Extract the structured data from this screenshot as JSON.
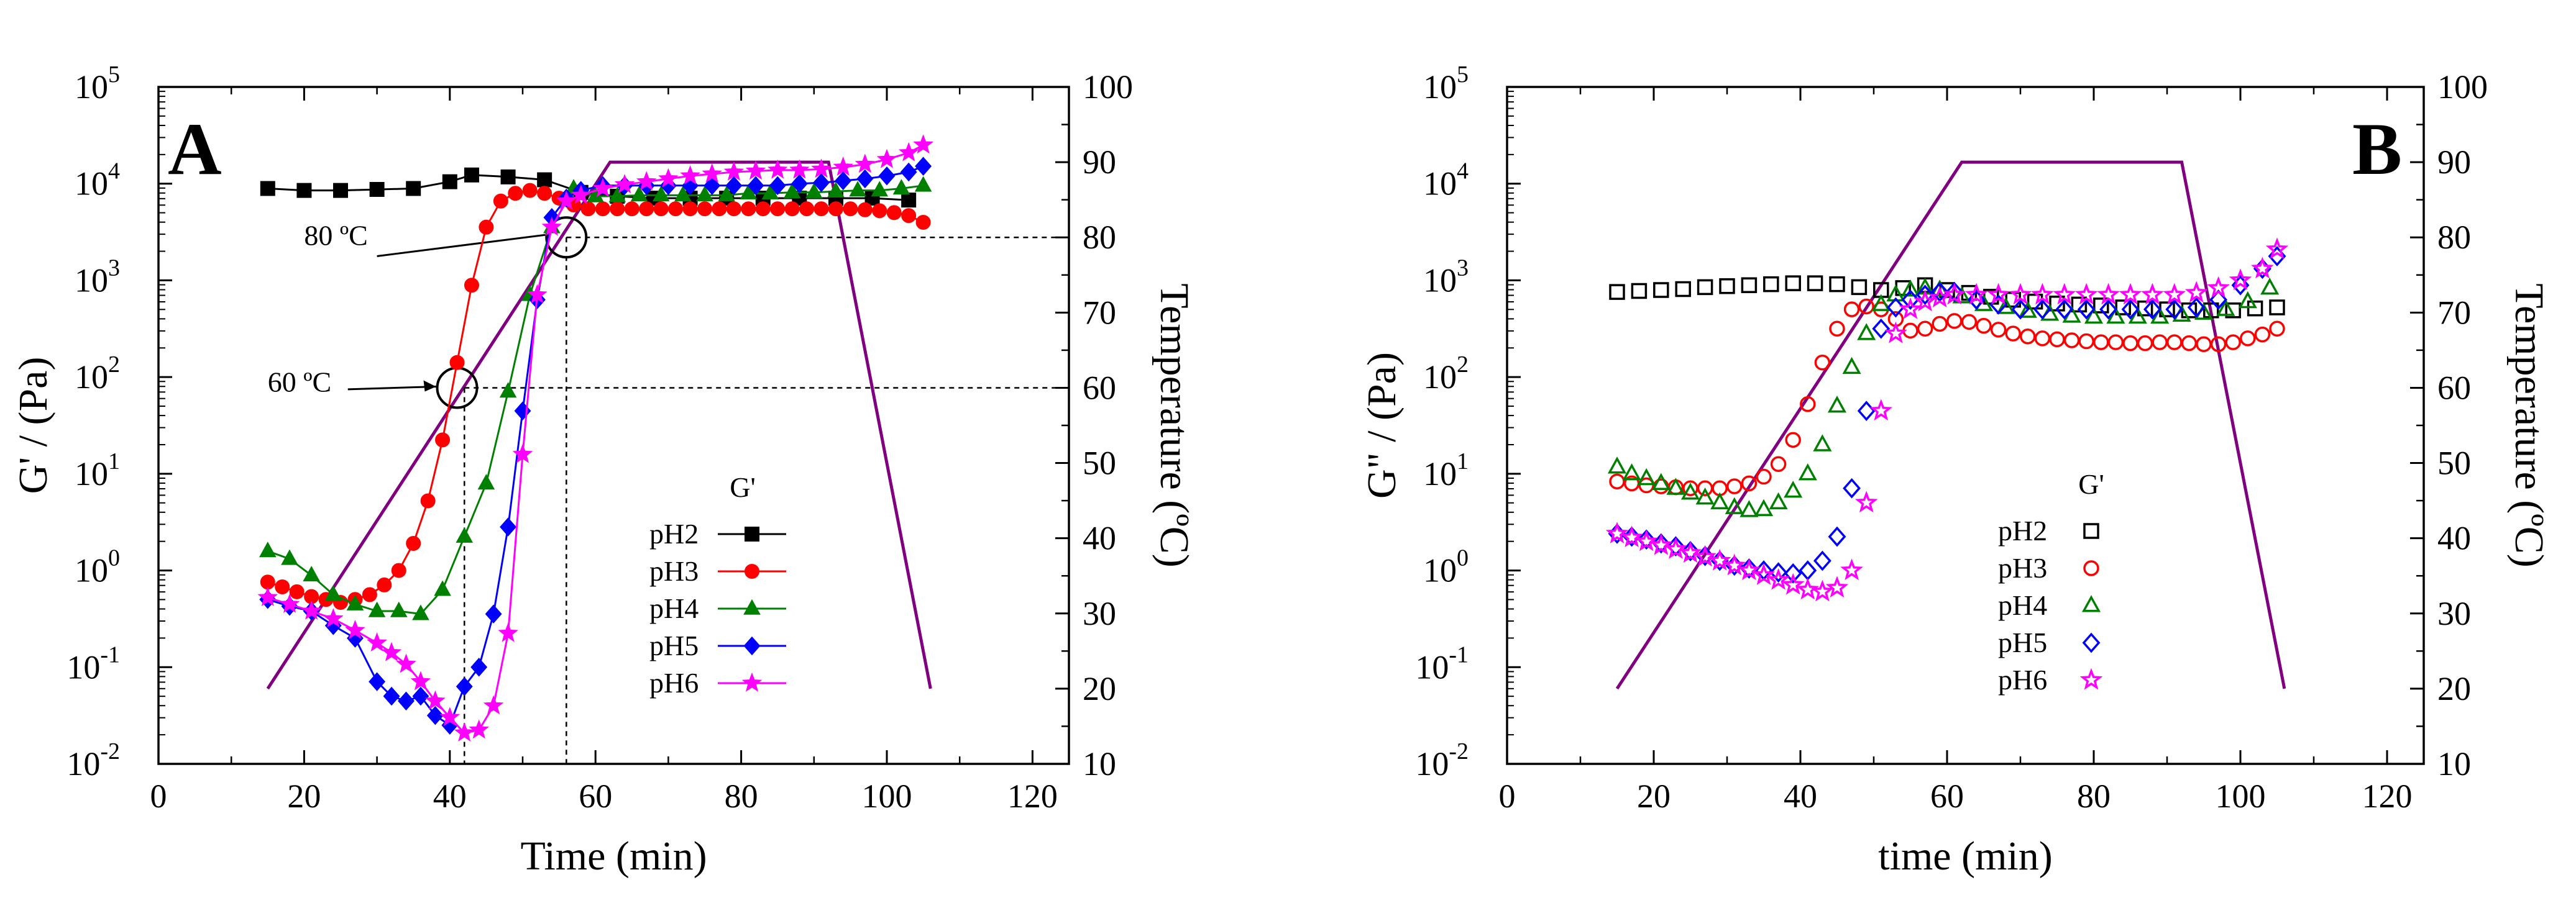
{
  "chart_data": [
    {
      "id": "A",
      "type": "scatter",
      "panel_label": "A",
      "xlabel": "Time (min)",
      "ylabel": "G' / (Pa)",
      "y2label": "Temperature (ºC)",
      "xlim": [
        0,
        125
      ],
      "ylim_log10": [
        -2,
        5
      ],
      "y2lim": [
        10,
        100
      ],
      "x_ticks": [
        "0",
        "20",
        "40",
        "60",
        "80",
        "100",
        "120"
      ],
      "x_tick_values": [
        0,
        20,
        40,
        60,
        80,
        100,
        120
      ],
      "y_ticks": [
        "10",
        "10",
        "10",
        "10",
        "10",
        "10",
        "10",
        "10"
      ],
      "y_tick_exponents": [
        "-2",
        "-1",
        "0",
        "1",
        "2",
        "3",
        "4",
        "5"
      ],
      "y_tick_values": [
        -2,
        -1,
        0,
        1,
        2,
        3,
        4,
        5
      ],
      "y2_ticks": [
        "10",
        "20",
        "30",
        "40",
        "50",
        "60",
        "70",
        "80",
        "90",
        "100"
      ],
      "y2_tick_values": [
        10,
        20,
        30,
        40,
        50,
        60,
        70,
        80,
        90,
        100
      ],
      "legend_title": "G'",
      "legend_placement": "center-right",
      "temperature_profile": {
        "x": [
          15,
          62,
          92,
          106
        ],
        "y": [
          20,
          90,
          90,
          20
        ]
      },
      "annotations": [
        {
          "text": "80 ºC",
          "target_x": 56,
          "target_temp": 80
        },
        {
          "text": "60 ºC",
          "target_x": 42,
          "target_temp": 60
        }
      ],
      "series": [
        {
          "name": "pH2",
          "color": "#000000",
          "marker": "square",
          "filled": true,
          "x": [
            15,
            20,
            25,
            30,
            35,
            40,
            43,
            48,
            53,
            58,
            63,
            68,
            73,
            78,
            83,
            88,
            93,
            98,
            103
          ],
          "y_log10": [
            3.95,
            3.93,
            3.93,
            3.94,
            3.95,
            4.02,
            4.09,
            4.07,
            4.04,
            3.91,
            3.87,
            3.85,
            3.85,
            3.85,
            3.85,
            3.85,
            3.85,
            3.85,
            3.83
          ]
        },
        {
          "name": "pH3",
          "color": "#ff0000",
          "marker": "circle",
          "filled": true,
          "x": [
            15,
            17,
            19,
            21,
            23,
            25,
            27,
            29,
            31,
            33,
            35,
            37,
            39,
            41,
            43,
            45,
            47,
            49,
            51,
            53,
            55,
            57,
            59,
            61,
            63,
            65,
            67,
            69,
            71,
            73,
            75,
            77,
            79,
            81,
            83,
            85,
            87,
            89,
            91,
            93,
            95,
            97,
            99,
            101,
            103,
            105
          ],
          "y_log10": [
            -0.12,
            -0.17,
            -0.22,
            -0.27,
            -0.3,
            -0.33,
            -0.3,
            -0.25,
            -0.15,
            0.0,
            0.28,
            0.72,
            1.35,
            2.15,
            2.95,
            3.55,
            3.82,
            3.9,
            3.93,
            3.9,
            3.85,
            3.78,
            3.74,
            3.74,
            3.74,
            3.74,
            3.74,
            3.74,
            3.74,
            3.74,
            3.74,
            3.74,
            3.74,
            3.74,
            3.74,
            3.74,
            3.74,
            3.74,
            3.74,
            3.74,
            3.74,
            3.73,
            3.72,
            3.7,
            3.67,
            3.6
          ]
        },
        {
          "name": "pH4",
          "color": "#008000",
          "marker": "triangle",
          "filled": true,
          "x": [
            15,
            18,
            21,
            24,
            27,
            30,
            33,
            36,
            39,
            42,
            45,
            48,
            51,
            54,
            57,
            60,
            63,
            66,
            69,
            72,
            75,
            78,
            81,
            84,
            87,
            90,
            93,
            96,
            99,
            102,
            105
          ],
          "y_log10": [
            0.2,
            0.12,
            -0.05,
            -0.25,
            -0.35,
            -0.42,
            -0.42,
            -0.45,
            -0.2,
            0.35,
            0.9,
            1.85,
            2.85,
            3.55,
            3.95,
            3.87,
            3.87,
            3.88,
            3.88,
            3.88,
            3.88,
            3.88,
            3.9,
            3.9,
            3.91,
            3.91,
            3.92,
            3.93,
            3.93,
            3.95,
            3.98
          ]
        },
        {
          "name": "pH5",
          "color": "#0000ff",
          "marker": "diamond",
          "filled": true,
          "x": [
            15,
            18,
            21,
            24,
            27,
            30,
            32,
            34,
            36,
            38,
            40,
            42,
            44,
            46,
            48,
            50,
            52,
            54,
            56,
            58,
            61,
            64,
            67,
            70,
            73,
            76,
            79,
            82,
            85,
            88,
            91,
            94,
            97,
            100,
            103,
            105
          ],
          "y_log10": [
            -0.3,
            -0.37,
            -0.42,
            -0.57,
            -0.7,
            -1.15,
            -1.3,
            -1.35,
            -1.3,
            -1.5,
            -1.6,
            -1.2,
            -1.0,
            -0.45,
            0.45,
            1.65,
            2.8,
            3.65,
            3.85,
            3.93,
            3.98,
            3.98,
            3.98,
            3.98,
            3.98,
            3.98,
            3.98,
            3.98,
            3.98,
            4.0,
            4.01,
            4.03,
            4.05,
            4.08,
            4.12,
            4.18
          ]
        },
        {
          "name": "pH6",
          "color": "#ff00ff",
          "marker": "star",
          "filled": true,
          "x": [
            15,
            18,
            21,
            24,
            27,
            30,
            32,
            34,
            36,
            38,
            40,
            42,
            44,
            46,
            48,
            50,
            52,
            54,
            56,
            58,
            61,
            64,
            67,
            70,
            73,
            76,
            79,
            82,
            85,
            88,
            91,
            94,
            97,
            100,
            103,
            105
          ],
          "y_log10": [
            -0.28,
            -0.35,
            -0.42,
            -0.5,
            -0.62,
            -0.75,
            -0.85,
            -0.97,
            -1.15,
            -1.35,
            -1.52,
            -1.68,
            -1.65,
            -1.4,
            -0.65,
            1.2,
            2.85,
            3.55,
            3.82,
            3.88,
            3.95,
            3.99,
            4.02,
            4.05,
            4.08,
            4.1,
            4.12,
            4.13,
            4.14,
            4.14,
            4.15,
            4.17,
            4.2,
            4.25,
            4.32,
            4.4
          ]
        }
      ]
    },
    {
      "id": "B",
      "type": "scatter",
      "panel_label": "B",
      "xlabel": "time (min)",
      "ylabel": "G\" / (Pa)",
      "y2label": "Temperature (ºC)",
      "xlim": [
        0,
        125
      ],
      "ylim_log10": [
        -2,
        5
      ],
      "y2lim": [
        10,
        100
      ],
      "x_ticks": [
        "0",
        "20",
        "40",
        "60",
        "80",
        "100",
        "120"
      ],
      "x_tick_values": [
        0,
        20,
        40,
        60,
        80,
        100,
        120
      ],
      "y_ticks": [
        "10",
        "10",
        "10",
        "10",
        "10",
        "10",
        "10",
        "10"
      ],
      "y_tick_exponents": [
        "-2",
        "-1",
        "0",
        "1",
        "2",
        "3",
        "4",
        "5"
      ],
      "y_tick_values": [
        -2,
        -1,
        0,
        1,
        2,
        3,
        4,
        5
      ],
      "y2_ticks": [
        "10",
        "20",
        "30",
        "40",
        "50",
        "60",
        "70",
        "80",
        "90",
        "100"
      ],
      "y2_tick_values": [
        10,
        20,
        30,
        40,
        50,
        60,
        70,
        80,
        90,
        100
      ],
      "legend_title": "G'",
      "legend_placement": "center-right",
      "temperature_profile": {
        "x": [
          15,
          62,
          92,
          106
        ],
        "y": [
          20,
          90,
          90,
          20
        ]
      },
      "series": [
        {
          "name": "pH2",
          "color": "#000000",
          "marker": "square",
          "filled": false,
          "x": [
            15,
            18,
            21,
            24,
            27,
            30,
            33,
            36,
            39,
            42,
            45,
            48,
            51,
            54,
            57,
            60,
            63,
            66,
            69,
            72,
            75,
            78,
            81,
            84,
            87,
            90,
            93,
            96,
            99,
            102,
            105
          ],
          "y_log10": [
            2.88,
            2.89,
            2.9,
            2.91,
            2.93,
            2.94,
            2.95,
            2.96,
            2.97,
            2.97,
            2.96,
            2.93,
            2.9,
            2.92,
            2.95,
            2.9,
            2.87,
            2.83,
            2.8,
            2.78,
            2.76,
            2.75,
            2.74,
            2.72,
            2.71,
            2.7,
            2.69,
            2.69,
            2.69,
            2.71,
            2.72
          ]
        },
        {
          "name": "pH3",
          "color": "#ff0000",
          "marker": "circle",
          "filled": false,
          "x": [
            15,
            17,
            19,
            21,
            23,
            25,
            27,
            29,
            31,
            33,
            35,
            37,
            39,
            41,
            43,
            45,
            47,
            49,
            51,
            53,
            55,
            57,
            59,
            61,
            63,
            65,
            67,
            69,
            71,
            73,
            75,
            77,
            79,
            81,
            83,
            85,
            87,
            89,
            91,
            93,
            95,
            97,
            99,
            101,
            103,
            105
          ],
          "y_log10": [
            0.92,
            0.9,
            0.88,
            0.87,
            0.86,
            0.85,
            0.85,
            0.85,
            0.87,
            0.9,
            0.97,
            1.1,
            1.35,
            1.72,
            2.15,
            2.5,
            2.7,
            2.73,
            2.7,
            2.6,
            2.48,
            2.5,
            2.55,
            2.58,
            2.57,
            2.53,
            2.49,
            2.45,
            2.42,
            2.4,
            2.39,
            2.38,
            2.37,
            2.36,
            2.36,
            2.35,
            2.35,
            2.36,
            2.36,
            2.35,
            2.34,
            2.34,
            2.36,
            2.4,
            2.44,
            2.5
          ]
        },
        {
          "name": "pH4",
          "color": "#008000",
          "marker": "triangle",
          "filled": false,
          "x": [
            15,
            17,
            19,
            21,
            23,
            25,
            27,
            29,
            31,
            33,
            35,
            37,
            39,
            41,
            43,
            45,
            47,
            49,
            51,
            53,
            55,
            57,
            59,
            62,
            65,
            68,
            71,
            74,
            77,
            80,
            83,
            86,
            89,
            92,
            95,
            98,
            101,
            104
          ],
          "y_log10": [
            1.07,
            1.0,
            0.95,
            0.9,
            0.85,
            0.8,
            0.75,
            0.7,
            0.65,
            0.62,
            0.63,
            0.7,
            0.82,
            1.0,
            1.3,
            1.7,
            2.1,
            2.45,
            2.75,
            2.85,
            2.9,
            2.92,
            2.9,
            2.83,
            2.75,
            2.72,
            2.68,
            2.65,
            2.63,
            2.62,
            2.62,
            2.62,
            2.62,
            2.64,
            2.66,
            2.7,
            2.78,
            2.92
          ]
        },
        {
          "name": "pH5",
          "color": "#0000ff",
          "marker": "diamond",
          "filled": false,
          "x": [
            15,
            17,
            19,
            21,
            23,
            25,
            27,
            29,
            31,
            33,
            35,
            37,
            39,
            41,
            43,
            45,
            47,
            49,
            51,
            53,
            55,
            57,
            59,
            61,
            64,
            67,
            70,
            73,
            76,
            79,
            82,
            85,
            88,
            91,
            94,
            97,
            100,
            103,
            105
          ],
          "y_log10": [
            0.38,
            0.35,
            0.32,
            0.28,
            0.25,
            0.2,
            0.15,
            0.1,
            0.05,
            0.02,
            0.0,
            -0.02,
            -0.03,
            0.0,
            0.1,
            0.35,
            0.85,
            1.65,
            2.5,
            2.72,
            2.8,
            2.85,
            2.88,
            2.88,
            2.8,
            2.75,
            2.7,
            2.7,
            2.7,
            2.7,
            2.7,
            2.7,
            2.7,
            2.7,
            2.72,
            2.8,
            2.95,
            3.12,
            3.25
          ]
        },
        {
          "name": "pH6",
          "color": "#ff00ff",
          "marker": "star",
          "filled": false,
          "x": [
            15,
            17,
            19,
            21,
            23,
            25,
            27,
            29,
            31,
            33,
            35,
            37,
            39,
            41,
            43,
            45,
            47,
            49,
            51,
            53,
            55,
            57,
            59,
            61,
            64,
            67,
            70,
            73,
            76,
            79,
            82,
            85,
            88,
            91,
            94,
            97,
            100,
            103,
            105
          ],
          "y_log10": [
            0.38,
            0.34,
            0.3,
            0.26,
            0.22,
            0.18,
            0.14,
            0.1,
            0.05,
            0.0,
            -0.05,
            -0.1,
            -0.15,
            -0.2,
            -0.22,
            -0.18,
            0.0,
            0.7,
            1.65,
            2.45,
            2.7,
            2.78,
            2.82,
            2.85,
            2.85,
            2.85,
            2.85,
            2.85,
            2.85,
            2.85,
            2.85,
            2.85,
            2.85,
            2.85,
            2.87,
            2.92,
            3.0,
            3.12,
            3.32
          ]
        }
      ]
    }
  ]
}
